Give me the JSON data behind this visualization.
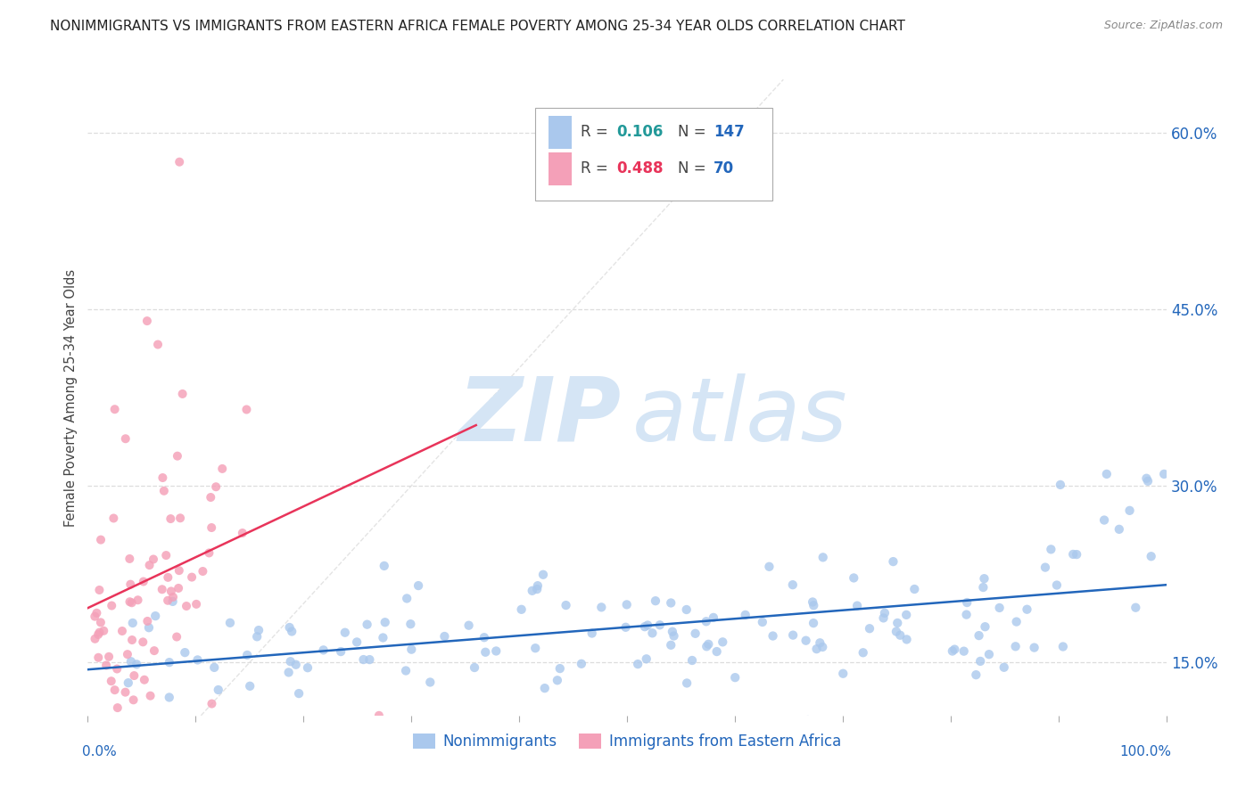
{
  "title": "NONIMMIGRANTS VS IMMIGRANTS FROM EASTERN AFRICA FEMALE POVERTY AMONG 25-34 YEAR OLDS CORRELATION CHART",
  "source": "Source: ZipAtlas.com",
  "ylabel": "Female Poverty Among 25-34 Year Olds",
  "xlim": [
    0,
    1.0
  ],
  "ylim": [
    0.105,
    0.645
  ],
  "yticks": [
    0.15,
    0.3,
    0.45,
    0.6
  ],
  "ytick_labels": [
    "15.0%",
    "30.0%",
    "45.0%",
    "60.0%"
  ],
  "blue_R": 0.106,
  "blue_N": 147,
  "pink_R": 0.488,
  "pink_N": 70,
  "blue_color": "#aac8ed",
  "blue_line_color": "#2266bb",
  "pink_color": "#f4a0b8",
  "pink_line_color": "#e8345a",
  "ref_line_color": "#dddddd",
  "background_color": "#ffffff",
  "grid_color": "#dddddd",
  "watermark_zip": "ZIP",
  "watermark_atlas": "atlas",
  "watermark_color": "#d5e5f5",
  "legend_label_blue": "Nonimmigrants",
  "legend_label_pink": "Immigrants from Eastern Africa",
  "title_color": "#222222",
  "axis_label_color": "#444444",
  "tick_color": "#2266bb",
  "legend_R_color_blue": "#229999",
  "legend_R_color_pink": "#e8345a",
  "legend_N_color": "#2266bb"
}
